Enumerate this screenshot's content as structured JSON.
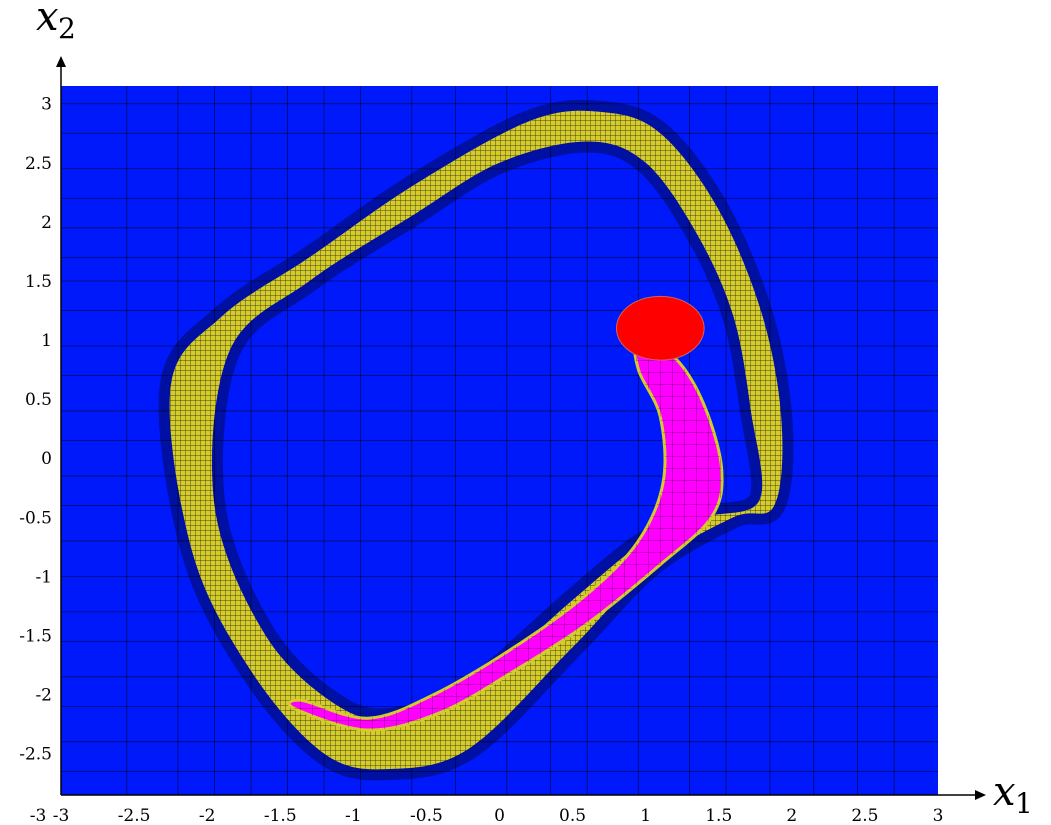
{
  "figure": {
    "x_axis_label": {
      "base": "x",
      "sub": "1"
    },
    "y_axis_label": {
      "base": "x",
      "sub": "2"
    }
  },
  "chart_data": {
    "type": "heatmap",
    "title": "",
    "xlim": [
      -3,
      3
    ],
    "ylim": [
      -2.85,
      3.15
    ],
    "x_ticks": [
      "-3",
      "-2.5",
      "-2",
      "-1.5",
      "-1",
      "-0.5",
      "0",
      "0.5",
      "1",
      "1.5",
      "2",
      "2.5",
      "3"
    ],
    "x_origin_label": "-3",
    "y_ticks": [
      "-2.5",
      "-2",
      "-1.5",
      "-1",
      "-0.5",
      "0",
      "0.5",
      "1",
      "1.5",
      "2",
      "2.5",
      "3"
    ],
    "colors": {
      "background": "#0019fb",
      "band": "#d4cb2c",
      "target_region": "#ff00ff",
      "target_set": "#ff0000",
      "grid": "#000000"
    },
    "regions": [
      {
        "name": "outer-band",
        "color": "#d4cb2c",
        "outline": [
          [
            1.88,
            -0.4
          ],
          [
            1.93,
            0.3
          ],
          [
            1.8,
            1.2
          ],
          [
            1.5,
            2.1
          ],
          [
            1.1,
            2.75
          ],
          [
            0.7,
            2.93
          ],
          [
            0.2,
            2.85
          ],
          [
            -0.6,
            2.3
          ],
          [
            -1.3,
            1.7
          ],
          [
            -1.9,
            1.2
          ],
          [
            -2.25,
            0.6
          ],
          [
            -2.1,
            -0.8
          ],
          [
            -1.7,
            -1.8
          ],
          [
            -1.2,
            -2.5
          ],
          [
            -0.75,
            -2.63
          ],
          [
            -0.2,
            -2.45
          ],
          [
            0.5,
            -1.6
          ],
          [
            1.05,
            -0.9
          ],
          [
            1.6,
            -0.5
          ]
        ],
        "hole": [
          [
            1.78,
            -0.35
          ],
          [
            1.72,
            0.4
          ],
          [
            1.6,
            1.2
          ],
          [
            1.35,
            1.9
          ],
          [
            1.0,
            2.5
          ],
          [
            0.6,
            2.68
          ],
          [
            0.0,
            2.5
          ],
          [
            -0.6,
            2.05
          ],
          [
            -1.3,
            1.5
          ],
          [
            -1.85,
            0.9
          ],
          [
            -1.95,
            -0.4
          ],
          [
            -1.6,
            -1.5
          ],
          [
            -1.1,
            -2.1
          ],
          [
            -0.7,
            -2.2
          ],
          [
            -0.2,
            -1.95
          ],
          [
            0.5,
            -1.2
          ],
          [
            1.0,
            -0.7
          ],
          [
            1.4,
            -0.5
          ]
        ]
      },
      {
        "name": "magenta-tail",
        "color": "#ff00ff",
        "outline": [
          [
            0.95,
            1.0
          ],
          [
            1.2,
            0.85
          ],
          [
            1.4,
            0.45
          ],
          [
            1.52,
            -0.1
          ],
          [
            1.45,
            -0.5
          ],
          [
            1.1,
            -0.9
          ],
          [
            0.6,
            -1.4
          ],
          [
            0.1,
            -1.8
          ],
          [
            -0.4,
            -2.15
          ],
          [
            -0.9,
            -2.3
          ],
          [
            -1.4,
            -2.12
          ],
          [
            -1.35,
            -2.05
          ],
          [
            -0.9,
            -2.2
          ],
          [
            -0.45,
            -2.0
          ],
          [
            0.1,
            -1.6
          ],
          [
            0.6,
            -1.15
          ],
          [
            0.95,
            -0.7
          ],
          [
            1.12,
            -0.2
          ],
          [
            1.1,
            0.35
          ],
          [
            0.95,
            0.75
          ]
        ]
      },
      {
        "name": "red-target",
        "color": "#ff0000",
        "shape": "ellipse",
        "center": [
          1.1,
          1.1
        ],
        "radii": [
          0.3,
          0.27
        ]
      }
    ]
  }
}
